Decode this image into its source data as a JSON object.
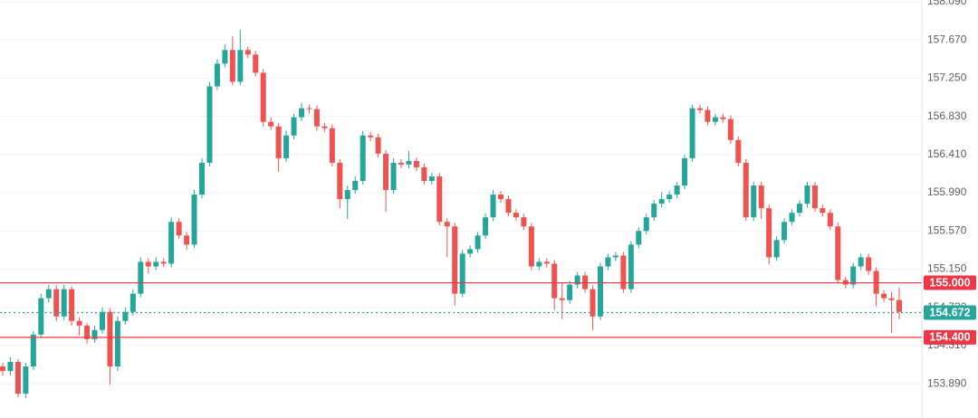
{
  "chart_data": {
    "type": "candlestick",
    "up_color": "#26a69a",
    "down_color": "#ef5350",
    "ylim": [
      153.513,
      158.11
    ],
    "yticks": [
      {
        "value": 158.09,
        "label": "158.090"
      },
      {
        "value": 157.67,
        "label": "157.670"
      },
      {
        "value": 157.25,
        "label": "157.250"
      },
      {
        "value": 156.83,
        "label": "156.830"
      },
      {
        "value": 156.41,
        "label": "156.410"
      },
      {
        "value": 155.99,
        "label": "155.990"
      },
      {
        "value": 155.57,
        "label": "155.570"
      },
      {
        "value": 155.15,
        "label": "155.150"
      },
      {
        "value": 154.73,
        "label": "154.730"
      },
      {
        "value": 154.31,
        "label": "154.310"
      },
      {
        "value": 153.89,
        "label": "153.890"
      }
    ],
    "grid": true,
    "price_lines": [
      {
        "value": 155.0,
        "label": "155.000",
        "color": "#f23645",
        "style": "solid"
      },
      {
        "value": 154.672,
        "label": "154.672",
        "color": "#26a69a",
        "style": "dotted"
      },
      {
        "value": 154.4,
        "label": "154.400",
        "color": "#f23645",
        "style": "solid"
      }
    ],
    "ohlc": [
      [
        154.08,
        154.12,
        153.98,
        154.03
      ],
      [
        154.03,
        154.18,
        153.98,
        154.13
      ],
      [
        154.13,
        154.16,
        153.74,
        153.78
      ],
      [
        153.78,
        154.12,
        153.73,
        154.08
      ],
      [
        154.08,
        154.47,
        154.04,
        154.43
      ],
      [
        154.43,
        154.88,
        154.39,
        154.83
      ],
      [
        154.83,
        154.98,
        154.78,
        154.93
      ],
      [
        154.93,
        154.97,
        154.58,
        154.63
      ],
      [
        154.63,
        154.98,
        154.59,
        154.93
      ],
      [
        154.93,
        154.96,
        154.53,
        154.58
      ],
      [
        154.58,
        154.62,
        154.42,
        154.53
      ],
      [
        154.53,
        154.56,
        154.33,
        154.38
      ],
      [
        154.38,
        154.53,
        154.34,
        154.48
      ],
      [
        154.48,
        154.73,
        154.44,
        154.68
      ],
      [
        154.68,
        154.72,
        153.88,
        154.08
      ],
      [
        154.08,
        154.63,
        154.03,
        154.58
      ],
      [
        154.58,
        154.73,
        154.54,
        154.68
      ],
      [
        154.68,
        154.93,
        154.64,
        154.88
      ],
      [
        154.88,
        155.28,
        154.84,
        155.23
      ],
      [
        155.23,
        155.27,
        155.1,
        155.18
      ],
      [
        155.18,
        155.28,
        155.14,
        155.23
      ],
      [
        155.23,
        155.27,
        155.17,
        155.21
      ],
      [
        155.21,
        155.72,
        155.17,
        155.67
      ],
      [
        155.67,
        155.71,
        155.48,
        155.52
      ],
      [
        155.52,
        155.56,
        155.36,
        155.42
      ],
      [
        155.42,
        156.02,
        155.38,
        155.97
      ],
      [
        155.97,
        156.37,
        155.93,
        156.32
      ],
      [
        156.32,
        157.21,
        156.28,
        157.16
      ],
      [
        157.16,
        157.46,
        157.12,
        157.41
      ],
      [
        157.41,
        157.62,
        157.37,
        157.56
      ],
      [
        157.56,
        157.71,
        157.17,
        157.21
      ],
      [
        157.21,
        157.78,
        157.17,
        157.56
      ],
      [
        157.56,
        157.6,
        157.47,
        157.51
      ],
      [
        157.51,
        157.55,
        157.27,
        157.31
      ],
      [
        157.31,
        157.35,
        156.72,
        156.77
      ],
      [
        156.77,
        156.82,
        156.68,
        156.72
      ],
      [
        156.72,
        156.76,
        156.22,
        156.37
      ],
      [
        156.37,
        156.67,
        156.33,
        156.62
      ],
      [
        156.62,
        156.86,
        156.58,
        156.82
      ],
      [
        156.82,
        156.98,
        156.78,
        156.92
      ],
      [
        156.92,
        156.96,
        156.86,
        156.91
      ],
      [
        156.91,
        156.95,
        156.67,
        156.72
      ],
      [
        156.72,
        156.76,
        156.66,
        156.7
      ],
      [
        156.7,
        156.74,
        156.28,
        156.32
      ],
      [
        156.32,
        156.36,
        155.82,
        155.92
      ],
      [
        155.92,
        156.07,
        155.7,
        156.02
      ],
      [
        156.02,
        156.17,
        155.98,
        156.12
      ],
      [
        156.12,
        156.67,
        156.08,
        156.62
      ],
      [
        156.62,
        156.66,
        156.56,
        156.6
      ],
      [
        156.6,
        156.64,
        156.38,
        156.42
      ],
      [
        156.42,
        156.46,
        155.78,
        156.02
      ],
      [
        156.02,
        156.37,
        155.98,
        156.32
      ],
      [
        156.32,
        156.36,
        156.26,
        156.3
      ],
      [
        156.3,
        156.45,
        156.26,
        156.34
      ],
      [
        156.34,
        156.38,
        156.23,
        156.27
      ],
      [
        156.27,
        156.31,
        156.08,
        156.12
      ],
      [
        156.12,
        156.21,
        156.08,
        156.17
      ],
      [
        156.17,
        156.21,
        155.63,
        155.67
      ],
      [
        155.67,
        155.71,
        155.28,
        155.62
      ],
      [
        155.62,
        155.66,
        154.75,
        154.88
      ],
      [
        154.88,
        155.36,
        154.84,
        155.32
      ],
      [
        155.32,
        155.41,
        155.28,
        155.37
      ],
      [
        155.37,
        155.56,
        155.33,
        155.52
      ],
      [
        155.52,
        155.76,
        155.48,
        155.72
      ],
      [
        155.72,
        156.02,
        155.68,
        155.97
      ],
      [
        155.97,
        156.01,
        155.88,
        155.92
      ],
      [
        155.92,
        155.96,
        155.73,
        155.77
      ],
      [
        155.77,
        155.81,
        155.68,
        155.72
      ],
      [
        155.72,
        155.76,
        155.58,
        155.62
      ],
      [
        155.62,
        155.66,
        155.14,
        155.18
      ],
      [
        155.18,
        155.27,
        155.14,
        155.23
      ],
      [
        155.23,
        155.27,
        155.17,
        155.21
      ],
      [
        155.21,
        155.25,
        154.7,
        154.83
      ],
      [
        154.83,
        155.0,
        154.6,
        154.81
      ],
      [
        154.81,
        155.02,
        154.77,
        154.98
      ],
      [
        154.98,
        155.12,
        154.94,
        155.08
      ],
      [
        155.08,
        155.12,
        154.89,
        154.93
      ],
      [
        154.93,
        154.97,
        154.48,
        154.63
      ],
      [
        154.63,
        155.22,
        154.59,
        155.18
      ],
      [
        155.18,
        155.32,
        155.14,
        155.28
      ],
      [
        155.28,
        155.34,
        155.24,
        155.3
      ],
      [
        155.3,
        155.34,
        154.89,
        154.93
      ],
      [
        154.93,
        155.46,
        154.89,
        155.42
      ],
      [
        155.42,
        155.61,
        155.38,
        155.57
      ],
      [
        155.57,
        155.76,
        155.53,
        155.72
      ],
      [
        155.72,
        155.91,
        155.68,
        155.87
      ],
      [
        155.87,
        156.0,
        155.83,
        155.92
      ],
      [
        155.92,
        156.01,
        155.88,
        155.97
      ],
      [
        155.97,
        156.11,
        155.93,
        156.07
      ],
      [
        156.07,
        156.41,
        156.03,
        156.37
      ],
      [
        156.37,
        156.96,
        156.33,
        156.92
      ],
      [
        156.92,
        156.96,
        156.86,
        156.9
      ],
      [
        156.9,
        156.94,
        156.73,
        156.77
      ],
      [
        156.77,
        156.86,
        156.73,
        156.82
      ],
      [
        156.82,
        156.86,
        156.76,
        156.8
      ],
      [
        156.8,
        156.84,
        156.53,
        156.57
      ],
      [
        156.57,
        156.61,
        156.28,
        156.32
      ],
      [
        156.32,
        156.36,
        155.68,
        155.72
      ],
      [
        155.72,
        156.11,
        155.68,
        156.07
      ],
      [
        156.07,
        156.11,
        155.7,
        155.82
      ],
      [
        155.82,
        155.86,
        155.2,
        155.28
      ],
      [
        155.28,
        155.51,
        155.24,
        155.47
      ],
      [
        155.47,
        155.71,
        155.43,
        155.67
      ],
      [
        155.67,
        155.81,
        155.63,
        155.77
      ],
      [
        155.77,
        155.91,
        155.73,
        155.87
      ],
      [
        155.87,
        156.11,
        155.83,
        156.07
      ],
      [
        156.07,
        156.11,
        155.78,
        155.82
      ],
      [
        155.82,
        155.86,
        155.73,
        155.77
      ],
      [
        155.77,
        155.81,
        155.58,
        155.62
      ],
      [
        155.62,
        155.66,
        154.99,
        155.03
      ],
      [
        155.03,
        155.07,
        154.94,
        154.98
      ],
      [
        154.98,
        155.22,
        154.94,
        155.18
      ],
      [
        155.18,
        155.32,
        155.14,
        155.28
      ],
      [
        155.28,
        155.32,
        155.09,
        155.13
      ],
      [
        155.13,
        155.17,
        154.74,
        154.88
      ],
      [
        154.88,
        154.92,
        154.79,
        154.83
      ],
      [
        154.83,
        154.9,
        154.45,
        154.81
      ],
      [
        154.81,
        154.95,
        154.6,
        154.68
      ]
    ]
  }
}
